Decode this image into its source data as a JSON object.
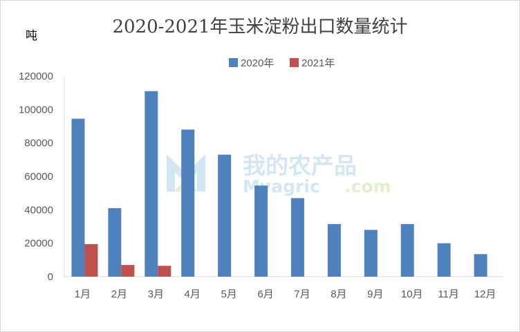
{
  "chart_data": {
    "type": "bar",
    "title": "2020-2021年玉米淀粉出口数量统计",
    "ylabel": "吨",
    "xlabel": "",
    "categories": [
      "1月",
      "2月",
      "3月",
      "4月",
      "5月",
      "6月",
      "7月",
      "8月",
      "9月",
      "10月",
      "11月",
      "12月"
    ],
    "series": [
      {
        "name": "2020年",
        "color": "#4f81bd",
        "values": [
          94500,
          41000,
          111000,
          88000,
          73000,
          54500,
          47000,
          31500,
          28000,
          31500,
          20000,
          13500
        ]
      },
      {
        "name": "2021年",
        "color": "#c0504d",
        "values": [
          19500,
          7000,
          6500,
          null,
          null,
          null,
          null,
          null,
          null,
          null,
          null,
          null
        ]
      }
    ],
    "ylim": [
      0,
      120000
    ],
    "yticks": [
      0,
      20000,
      40000,
      60000,
      80000,
      100000,
      120000
    ],
    "grid": false,
    "legend": "top-center"
  },
  "watermark": {
    "brand": "我的农产品",
    "site": "Myagric",
    "domain": ".com"
  }
}
